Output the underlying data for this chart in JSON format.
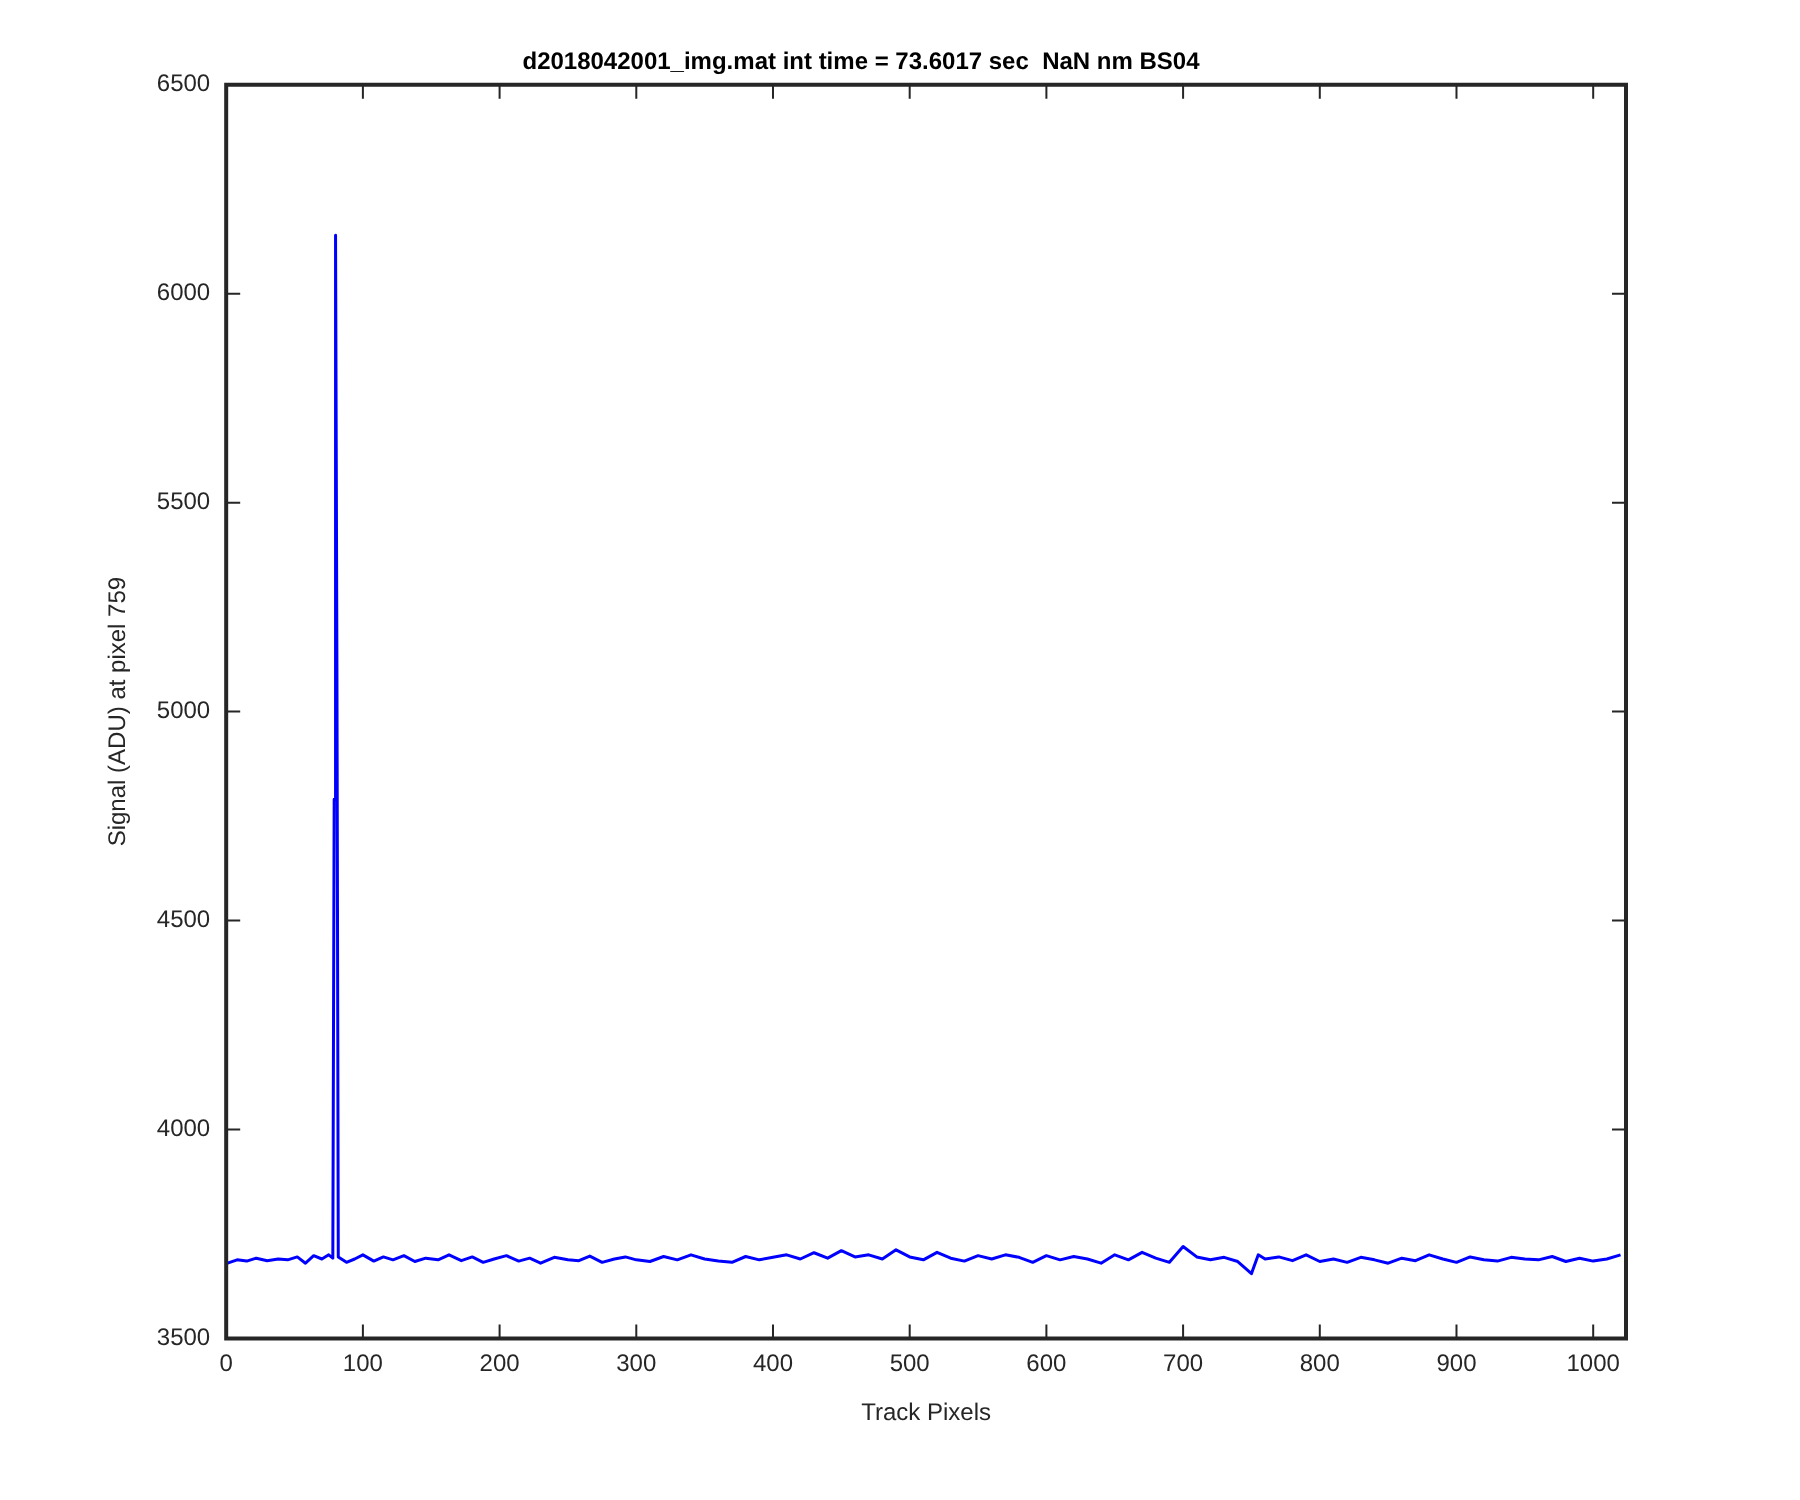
{
  "chart_data": {
    "type": "line",
    "title": "d2018042001_img.mat int time = 73.6017 sec  NaN nm BS04",
    "xlabel": "Track Pixels",
    "ylabel": "Signal (ADU) at pixel 759",
    "xlim": [
      0,
      1024
    ],
    "ylim": [
      3500,
      6500
    ],
    "xticks": [
      0,
      100,
      200,
      300,
      400,
      500,
      600,
      700,
      800,
      900,
      1000
    ],
    "yticks": [
      3500,
      4000,
      4500,
      5000,
      5500,
      6000,
      6500
    ],
    "grid": false,
    "legend": false,
    "marker": "none",
    "line_style": "solid",
    "series": [
      {
        "color": "#0000ff",
        "x": [
          1,
          8,
          15,
          22,
          30,
          38,
          45,
          52,
          58,
          64,
          70,
          75,
          78,
          79,
          80,
          81,
          82,
          88,
          94,
          100,
          108,
          115,
          122,
          130,
          138,
          146,
          155,
          163,
          172,
          180,
          188,
          196,
          205,
          214,
          222,
          230,
          240,
          250,
          258,
          266,
          275,
          284,
          292,
          300,
          310,
          320,
          330,
          340,
          350,
          360,
          370,
          380,
          390,
          400,
          410,
          420,
          430,
          440,
          450,
          460,
          470,
          480,
          490,
          500,
          510,
          520,
          530,
          540,
          550,
          560,
          570,
          580,
          590,
          600,
          610,
          620,
          630,
          640,
          650,
          660,
          670,
          680,
          690,
          700,
          710,
          720,
          730,
          740,
          750,
          755,
          760,
          770,
          780,
          790,
          800,
          810,
          820,
          830,
          840,
          850,
          860,
          870,
          880,
          890,
          900,
          910,
          920,
          930,
          940,
          950,
          960,
          970,
          980,
          990,
          1000,
          1010,
          1020
        ],
        "values": [
          3680,
          3688,
          3685,
          3692,
          3686,
          3690,
          3688,
          3695,
          3680,
          3698,
          3690,
          3700,
          3692,
          4790,
          6140,
          5110,
          3695,
          3682,
          3690,
          3700,
          3685,
          3695,
          3688,
          3698,
          3684,
          3692,
          3688,
          3700,
          3686,
          3695,
          3682,
          3690,
          3698,
          3685,
          3692,
          3680,
          3694,
          3688,
          3686,
          3697,
          3682,
          3690,
          3695,
          3688,
          3684,
          3696,
          3688,
          3700,
          3690,
          3685,
          3682,
          3696,
          3688,
          3694,
          3700,
          3690,
          3705,
          3692,
          3710,
          3695,
          3700,
          3690,
          3712,
          3695,
          3688,
          3706,
          3692,
          3685,
          3698,
          3690,
          3700,
          3694,
          3682,
          3698,
          3688,
          3696,
          3690,
          3680,
          3700,
          3688,
          3706,
          3692,
          3682,
          3720,
          3695,
          3688,
          3694,
          3684,
          3655,
          3700,
          3690,
          3695,
          3686,
          3700,
          3684,
          3690,
          3682,
          3694,
          3688,
          3680,
          3692,
          3686,
          3700,
          3690,
          3682,
          3695,
          3688,
          3685,
          3694,
          3690,
          3688,
          3696,
          3684,
          3692,
          3685,
          3690,
          3700
        ]
      }
    ]
  }
}
